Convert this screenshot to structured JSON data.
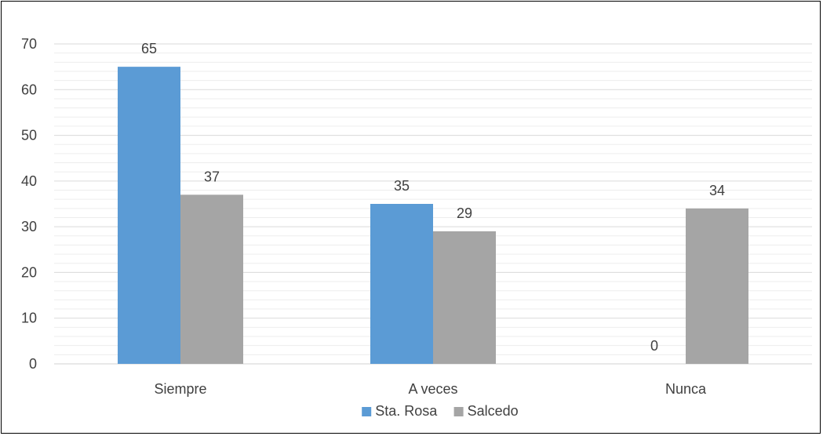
{
  "chart_data": {
    "type": "bar",
    "title": "",
    "xlabel": "",
    "ylabel": "",
    "categories": [
      "Siempre",
      "A veces",
      "Nunca"
    ],
    "series": [
      {
        "name": "Sta. Rosa",
        "color": "#5B9BD5",
        "values": [
          65,
          35,
          0
        ]
      },
      {
        "name": "Salcedo",
        "color": "#A5A5A5",
        "values": [
          37,
          29,
          34
        ]
      }
    ],
    "ylim": [
      0,
      70
    ],
    "yticks": [
      0,
      10,
      20,
      30,
      40,
      50,
      60,
      70
    ],
    "data_labels": true,
    "grid": true,
    "legend": "bottom-center"
  }
}
